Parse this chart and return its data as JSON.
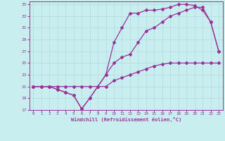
{
  "xlabel": "Windchill (Refroidissement éolien,°C)",
  "bg_color": "#c8eef0",
  "line_color": "#993399",
  "grid_color": "#b8e0e4",
  "xlim": [
    -0.5,
    23.5
  ],
  "ylim": [
    17,
    35.5
  ],
  "xticks": [
    0,
    1,
    2,
    3,
    4,
    5,
    6,
    7,
    8,
    9,
    10,
    11,
    12,
    13,
    14,
    15,
    16,
    17,
    18,
    19,
    20,
    21,
    22,
    23
  ],
  "yticks": [
    17,
    19,
    21,
    23,
    25,
    27,
    29,
    31,
    33,
    35
  ],
  "line1_x": [
    0,
    1,
    2,
    3,
    4,
    5,
    6,
    7,
    8,
    9,
    10,
    11,
    12,
    13,
    14,
    15,
    16,
    17,
    18,
    19,
    20,
    21,
    22,
    23
  ],
  "line1_y": [
    21,
    21,
    21,
    21,
    21,
    21,
    21,
    21,
    21,
    21,
    22,
    22.5,
    23,
    23.5,
    24,
    24.5,
    24.8,
    25,
    25,
    25,
    25,
    25,
    25,
    25
  ],
  "line2_x": [
    0,
    1,
    2,
    3,
    4,
    5,
    6,
    7,
    8,
    9,
    10,
    11,
    12,
    13,
    14,
    15,
    16,
    17,
    18,
    19,
    20,
    21,
    22,
    23
  ],
  "line2_y": [
    21,
    21,
    21,
    20.5,
    20,
    19.5,
    17.2,
    19,
    21,
    23,
    25,
    26,
    26.5,
    28.5,
    30.5,
    31,
    32,
    33,
    33.5,
    34,
    34.5,
    34.5,
    32,
    27
  ],
  "line3_x": [
    0,
    1,
    2,
    3,
    4,
    5,
    6,
    7,
    8,
    9,
    10,
    11,
    12,
    13,
    14,
    15,
    16,
    17,
    18,
    19,
    20,
    21,
    22,
    23
  ],
  "line3_y": [
    21,
    21,
    21,
    20.5,
    20,
    19.5,
    17.2,
    19,
    21,
    23,
    28.5,
    31,
    33.5,
    33.5,
    34,
    34,
    34.2,
    34.5,
    35,
    35,
    34.8,
    34,
    32,
    27
  ]
}
